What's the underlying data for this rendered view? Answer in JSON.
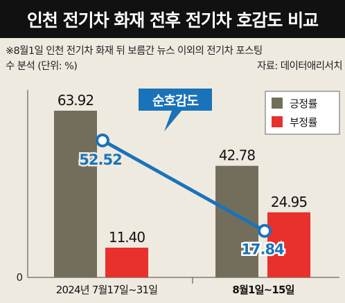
{
  "title": "인천 전기차 화재 전후 전기차 호감도 비교",
  "note_line1": "※8월1일 인천 전기차 화재 뒤 보름간 뉴스 이외의 전기차 포스팅",
  "note_line2": "수 분석 (단위: %)",
  "source": "자료: 데이터애리서치",
  "colors": {
    "positive": "#736e5b",
    "negative": "#e8302c",
    "net_line": "#1a73b9",
    "background": "#efeae0"
  },
  "chart_data": {
    "type": "bar",
    "categories": [
      "2024년 7월17일~31일",
      "8월1일~15일"
    ],
    "series": [
      {
        "name": "긍정률",
        "values": [
          63.92,
          42.78
        ],
        "color": "#736e5b"
      },
      {
        "name": "부정률",
        "values": [
          11.4,
          24.95
        ],
        "color": "#e8302c"
      }
    ],
    "line_series": {
      "name": "순호감도",
      "values": [
        52.52,
        17.84
      ],
      "color": "#1a73b9"
    },
    "value_labels": {
      "positive": [
        "63.92",
        "42.78"
      ],
      "negative": [
        "11.40",
        "24.95"
      ],
      "net": [
        "52.52",
        "17.84"
      ]
    },
    "y_tick_labels": [
      "0"
    ],
    "ylim": [
      0,
      70
    ],
    "legend_position": "top-right"
  }
}
